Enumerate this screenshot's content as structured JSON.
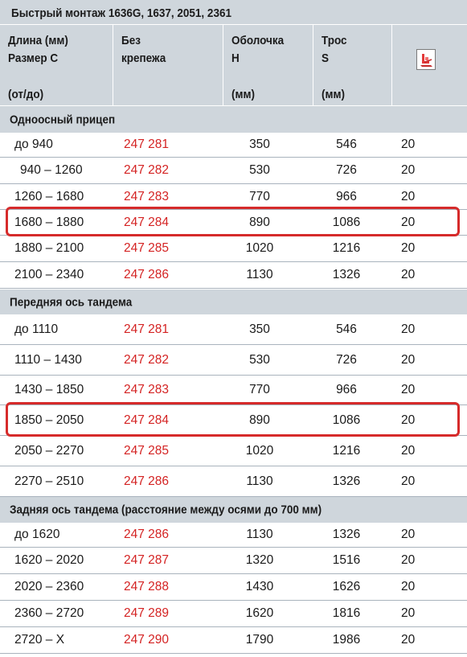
{
  "title": "Быстрый монтаж 1636G, 1637, 2051, 2361",
  "header": {
    "col1": [
      "Длина (мм)",
      "Размер С"
    ],
    "col1_unit": "(от/до)",
    "col2": [
      "Без",
      "крепежа"
    ],
    "col3": [
      "Оболочка",
      "H"
    ],
    "col3_unit": "(мм)",
    "col4": [
      "Трос",
      "S"
    ],
    "col4_unit": "(мм)",
    "col5_icon": "packaging-icon"
  },
  "colors": {
    "header_bg": "#cfd6dc",
    "article_red": "#d42323",
    "highlight_red": "#d62b2b"
  },
  "sections": [
    {
      "label": "Одноосный прицеп",
      "rows": [
        [
          "до 940",
          "247 281",
          "350",
          "546",
          "20"
        ],
        [
          "940 – 1260",
          "247 282",
          "530",
          "726",
          "20"
        ],
        [
          "1260 – 1680",
          "247 283",
          "770",
          "966",
          "20"
        ],
        [
          "1680 – 1880",
          "247 284",
          "890",
          "1086",
          "20"
        ],
        [
          "1880 – 2100",
          "247 285",
          "1020",
          "1216",
          "20"
        ],
        [
          "2100 – 2340",
          "247 286",
          "1130",
          "1326",
          "20"
        ]
      ]
    },
    {
      "label": "Передняя ось тандема",
      "rows": [
        [
          "до 1110",
          "247 281",
          "350",
          "546",
          "20"
        ],
        [
          "1110 – 1430",
          "247 282",
          "530",
          "726",
          "20"
        ],
        [
          "1430 – 1850",
          "247 283",
          "770",
          "966",
          "20"
        ],
        [
          "1850 – 2050",
          "247 284",
          "890",
          "1086",
          "20"
        ],
        [
          "2050 – 2270",
          "247 285",
          "1020",
          "1216",
          "20"
        ],
        [
          "2270 – 2510",
          "247 286",
          "1130",
          "1326",
          "20"
        ]
      ]
    },
    {
      "label": "Задняя ось тандема (расстояние между осями до 700 мм)",
      "rows": [
        [
          "до 1620",
          "247 286",
          "1130",
          "1326",
          "20"
        ],
        [
          "1620 – 2020",
          "247 287",
          "1320",
          "1516",
          "20"
        ],
        [
          "2020 – 2360",
          "247 288",
          "1430",
          "1626",
          "20"
        ],
        [
          "2360 – 2720",
          "247 289",
          "1620",
          "1816",
          "20"
        ],
        [
          "2720 – X",
          "247 290",
          "1790",
          "1986",
          "20"
        ]
      ]
    }
  ]
}
